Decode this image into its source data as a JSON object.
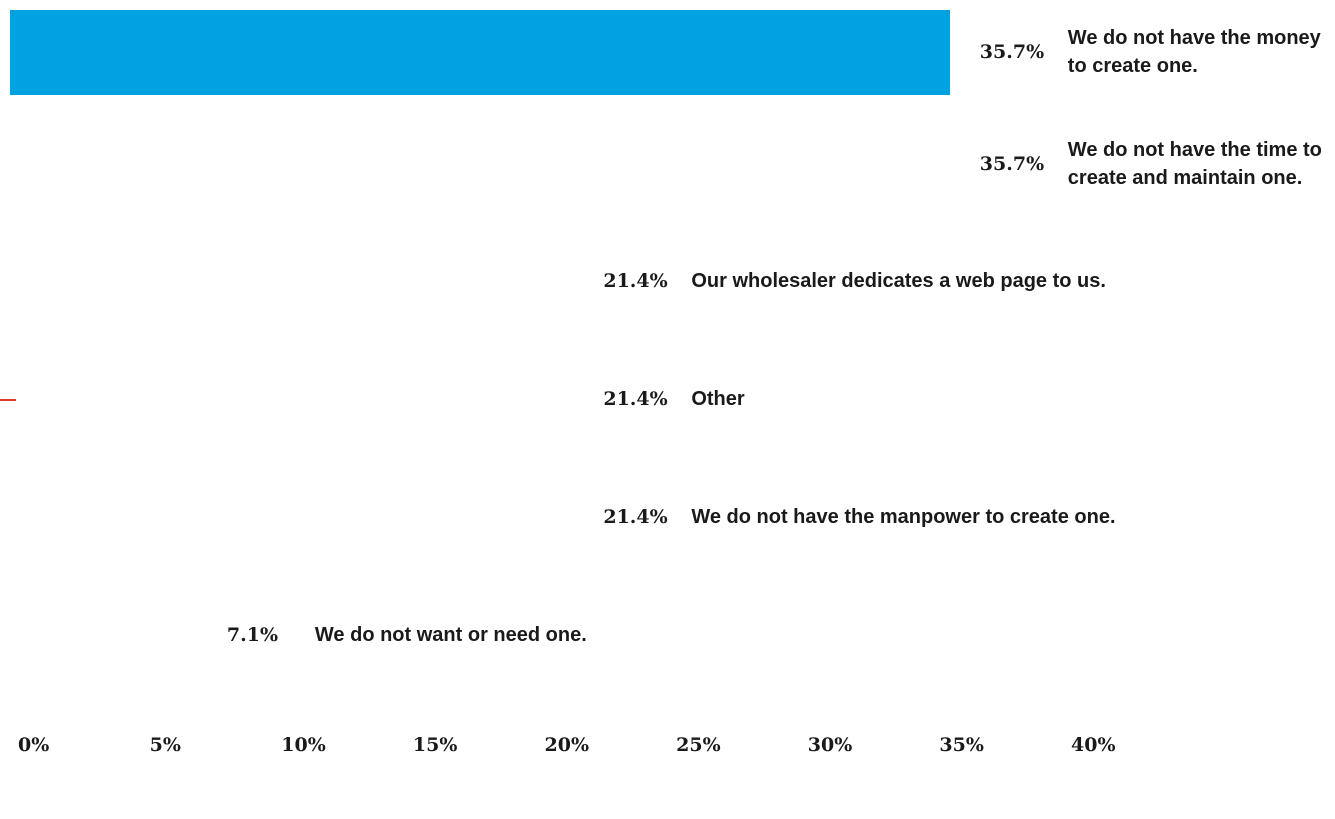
{
  "chart_data": {
    "type": "bar",
    "orientation": "horizontal",
    "categories": [
      "We do not have the money to create one.",
      "We do not have the time to create and maintain one.",
      "Our wholesaler dedicates a web page to us.",
      "Other",
      "We do not have the manpower to create one.",
      "We do not want or need one."
    ],
    "values": [
      35.7,
      35.7,
      21.4,
      21.4,
      21.4,
      7.1
    ],
    "value_labels": [
      "35.7%",
      "35.7%",
      "21.4%",
      "21.4%",
      "21.4%",
      "7.1%"
    ],
    "xlim": [
      0,
      40
    ],
    "x_ticks": [
      "0%",
      "5%",
      "10%",
      "15%",
      "20%",
      "25%",
      "30%",
      "35%",
      "40%"
    ],
    "title": "",
    "xlabel": "",
    "ylabel": "",
    "grid": false,
    "colors": {
      "bar": "#00a3e0",
      "text": "#1a1a1a",
      "marker": "#e03a2f"
    }
  }
}
